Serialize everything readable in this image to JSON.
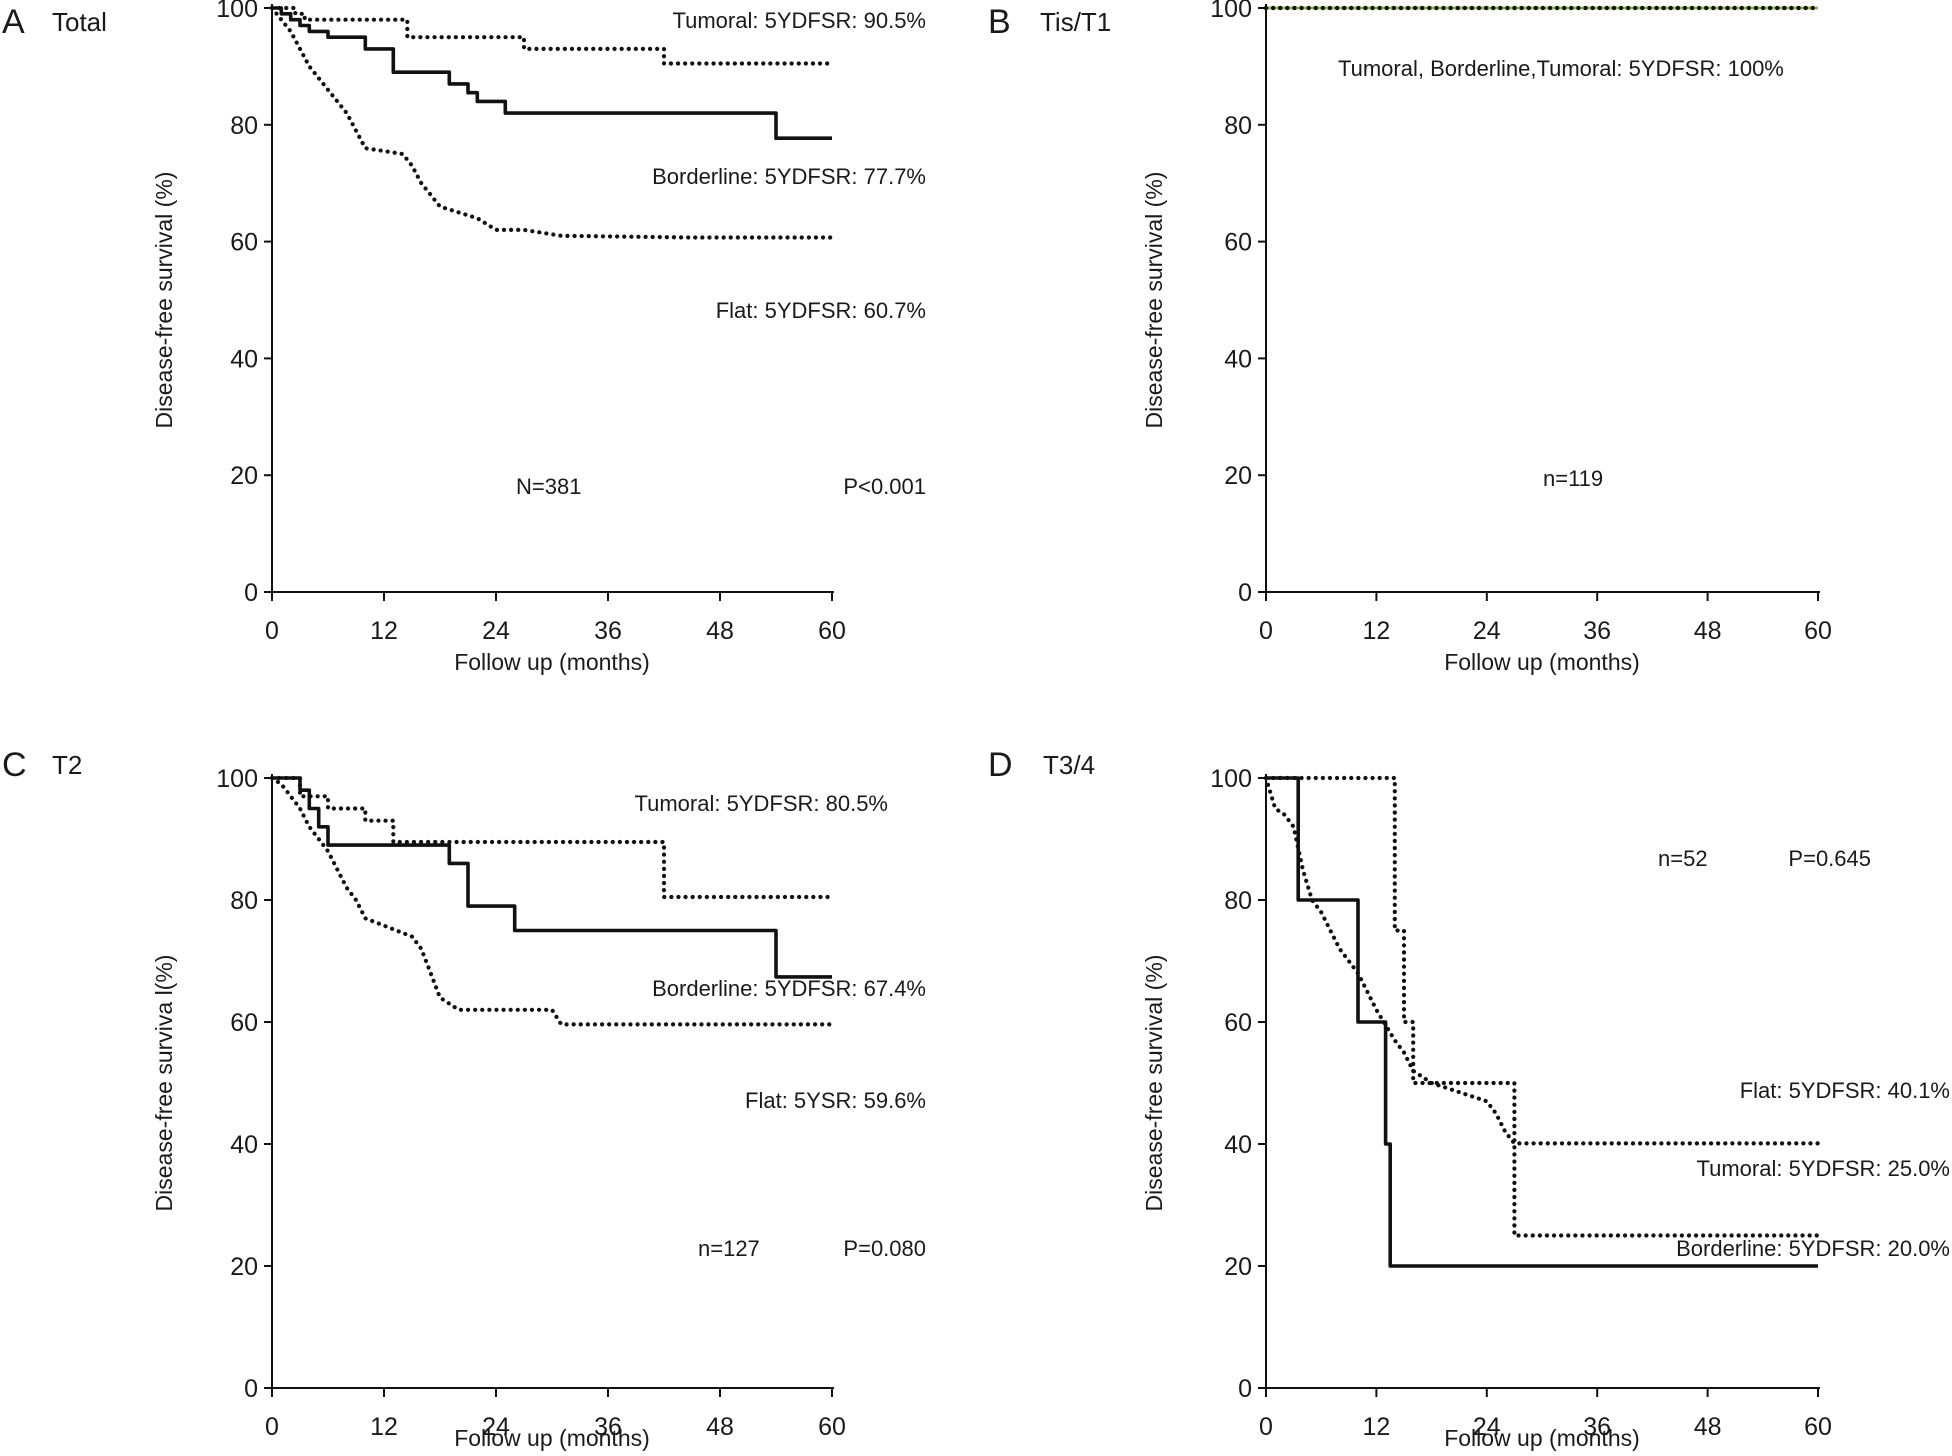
{
  "chart_data": [
    {
      "type": "line",
      "panel_letter": "A",
      "title": "Total",
      "xlabel": "Follow up (months)",
      "ylabel": "Disease-free survival (%)",
      "xlim": [
        0,
        60
      ],
      "ylim": [
        0,
        100
      ],
      "xticks": [
        0,
        12,
        24,
        36,
        48,
        60
      ],
      "yticks": [
        0,
        20,
        40,
        60,
        80,
        100
      ],
      "grid": false,
      "series": [
        {
          "name": "Tumoral",
          "style": "dotted",
          "x": [
            0,
            2.5,
            2.5,
            3.5,
            3.5,
            14.5,
            14.5,
            27,
            27,
            42,
            42,
            60
          ],
          "y": [
            100,
            100,
            99,
            99,
            98,
            98,
            95,
            95,
            93,
            93,
            90.5,
            90.5
          ]
        },
        {
          "name": "Borderline",
          "style": "solid",
          "x": [
            0,
            1,
            1,
            2,
            2,
            3,
            3,
            4,
            4,
            6,
            6,
            10,
            10,
            13,
            13,
            19,
            19,
            21,
            21,
            22,
            22,
            25,
            25,
            54,
            54,
            60
          ],
          "y": [
            100,
            100,
            99,
            99,
            98,
            98,
            97,
            97,
            96,
            96,
            95,
            95,
            93,
            93,
            89,
            89,
            87,
            87,
            85.5,
            85.5,
            84,
            84,
            82,
            82,
            77.7,
            77.7
          ]
        },
        {
          "name": "Flat",
          "style": "dotted",
          "x": [
            0,
            1,
            2,
            3,
            4,
            5,
            6,
            7,
            8,
            9,
            10,
            14,
            15,
            16,
            17,
            18,
            20,
            22,
            24,
            27,
            31,
            45,
            60
          ],
          "y": [
            100,
            98,
            96,
            93,
            90,
            88,
            86,
            84,
            82,
            79,
            76,
            75,
            73,
            70,
            68,
            66,
            65,
            64,
            62,
            62,
            61,
            60.7,
            60.7
          ]
        }
      ],
      "annotations": [
        "Tumoral: 5YDFSR: 90.5%",
        "Borderline: 5YDFSR: 77.7%",
        "Flat: 5YDFSR: 60.7%",
        "N=381",
        "P<0.001"
      ]
    },
    {
      "type": "line",
      "panel_letter": "B",
      "title": "Tis/T1",
      "xlabel": "Follow up (months)",
      "ylabel": "Disease-free survival (%)",
      "xlim": [
        0,
        60
      ],
      "ylim": [
        0,
        100
      ],
      "xticks": [
        0,
        12,
        24,
        36,
        48,
        60
      ],
      "yticks": [
        0,
        20,
        40,
        60,
        80,
        100
      ],
      "grid": false,
      "series": [
        {
          "name": "Tumoral",
          "style": "solid",
          "color": "#8cbf3f",
          "x": [
            0,
            60
          ],
          "y": [
            100,
            100
          ]
        },
        {
          "name": "Borderline",
          "style": "dotted",
          "x": [
            0,
            60
          ],
          "y": [
            100,
            100
          ]
        },
        {
          "name": "Flat",
          "style": "dotted",
          "x": [
            0,
            60
          ],
          "y": [
            100,
            100
          ]
        }
      ],
      "annotations": [
        "Tumoral, Borderline,Tumoral: 5YDFSR: 100%",
        "n=119"
      ]
    },
    {
      "type": "line",
      "panel_letter": "C",
      "title": "T2",
      "xlabel": "Follow up (months)",
      "ylabel": "Disease-free surviva l(%)",
      "xlim": [
        0,
        60
      ],
      "ylim": [
        0,
        100
      ],
      "xticks": [
        0,
        12,
        24,
        36,
        48,
        60
      ],
      "yticks": [
        0,
        20,
        40,
        60,
        80,
        100
      ],
      "grid": false,
      "series": [
        {
          "name": "Tumoral",
          "style": "dotted",
          "x": [
            0,
            3,
            3,
            6,
            6,
            10,
            10,
            13,
            13,
            42,
            42,
            60
          ],
          "y": [
            100,
            100,
            97,
            97,
            95,
            95,
            93,
            93,
            89.5,
            89.5,
            80.5,
            80.5
          ]
        },
        {
          "name": "Borderline",
          "style": "solid",
          "x": [
            0,
            3,
            3,
            4,
            4,
            5,
            5,
            6,
            6,
            19,
            19,
            21,
            21,
            26,
            26,
            54,
            54,
            60
          ],
          "y": [
            100,
            100,
            98,
            98,
            95,
            95,
            92,
            92,
            89,
            89,
            86,
            86,
            79,
            79,
            75,
            75,
            67.4,
            67.4
          ]
        },
        {
          "name": "Flat",
          "style": "dotted",
          "x": [
            0,
            1,
            2,
            3,
            4,
            5,
            6,
            7,
            8,
            9,
            10,
            15,
            16,
            17,
            18,
            20,
            24,
            30,
            31,
            60
          ],
          "y": [
            100,
            99,
            97,
            95,
            92,
            90,
            88,
            85,
            82,
            80,
            77,
            74,
            72,
            68,
            64,
            62,
            62,
            62,
            59.6,
            59.6
          ]
        }
      ],
      "annotations": [
        "Tumoral: 5YDFSR: 80.5%",
        "Borderline: 5YDFSR: 67.4%",
        "Flat: 5YSR: 59.6%",
        "n=127",
        "P=0.080"
      ]
    },
    {
      "type": "line",
      "panel_letter": "D",
      "title": "T3/4",
      "xlabel": "Follow up (months)",
      "ylabel": "Disease-free survival (%)",
      "xlim": [
        0,
        60
      ],
      "ylim": [
        0,
        100
      ],
      "xticks": [
        0,
        12,
        24,
        36,
        48,
        60
      ],
      "yticks": [
        0,
        20,
        40,
        60,
        80,
        100
      ],
      "grid": false,
      "series": [
        {
          "name": "Tumoral",
          "style": "dotted",
          "x": [
            0,
            14,
            14,
            15,
            15,
            16,
            16,
            27,
            27,
            60
          ],
          "y": [
            100,
            100,
            75,
            75,
            60,
            60,
            50,
            50,
            25,
            25
          ]
        },
        {
          "name": "Borderline",
          "style": "solid",
          "x": [
            0,
            3.5,
            3.5,
            10,
            10,
            13,
            13,
            13.5,
            13.5,
            60
          ],
          "y": [
            100,
            100,
            80,
            80,
            60,
            60,
            40,
            40,
            20,
            20
          ]
        },
        {
          "name": "Flat",
          "style": "dotted",
          "x": [
            0,
            1,
            2,
            3,
            4,
            5,
            6,
            7,
            8,
            9,
            10,
            12,
            14,
            15,
            16,
            17,
            18,
            20,
            22,
            24,
            25,
            26,
            27,
            60
          ],
          "y": [
            100,
            95,
            94,
            92,
            85,
            80,
            78,
            75,
            72,
            70,
            68,
            62,
            57,
            55,
            52,
            51,
            50,
            49,
            48,
            47,
            45,
            42,
            40.1,
            40.1
          ]
        }
      ],
      "annotations": [
        "n=52",
        "P=0.645",
        "Flat: 5YDFSR: 40.1%",
        "Tumoral: 5YDFSR: 25.0%",
        "Borderline: 5YDFSR: 20.0%"
      ]
    }
  ]
}
